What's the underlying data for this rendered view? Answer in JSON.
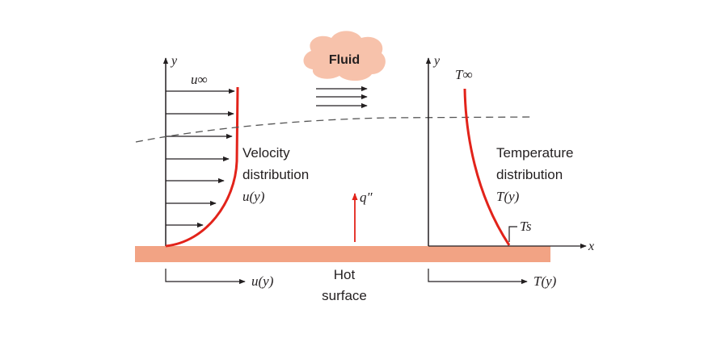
{
  "labels": {
    "fluid": "Fluid",
    "u_inf": "u∞",
    "y_left": "y",
    "y_right": "y",
    "t_inf": "T∞",
    "x_axis": "x",
    "velocity_line1": "Velocity",
    "velocity_line2": "distribution",
    "velocity_func": "u(y)",
    "temperature_line1": "Temperature",
    "temperature_line2": "distribution",
    "temperature_func": "T(y)",
    "heat_flux": "q″",
    "t_s": "Ts",
    "hot_line1": "Hot",
    "hot_line2": "surface",
    "bottom_u": "u(y)",
    "bottom_t": "T(y)"
  },
  "colors": {
    "surface": "#f2a384",
    "profile": "#e2231a",
    "cloud": "#f7c2ab",
    "ink": "#231f20",
    "boundary": "#555555"
  }
}
